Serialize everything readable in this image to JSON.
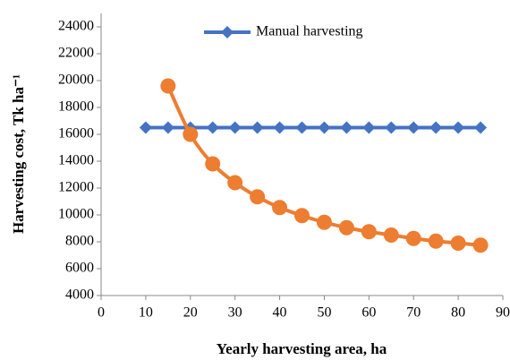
{
  "chart_data": {
    "type": "line",
    "x_label": "Yearly harvesting area, ha",
    "y_label": "Harvesting  cost, Tk ha⁻¹",
    "xlim": [
      0,
      90
    ],
    "xticks": [
      0,
      10,
      20,
      30,
      40,
      50,
      60,
      70,
      80,
      90
    ],
    "ylim": [
      4000,
      25000
    ],
    "yticks": [
      4000,
      6000,
      8000,
      10000,
      12000,
      14000,
      16000,
      18000,
      20000,
      22000,
      24000
    ],
    "series": [
      {
        "name": "Manual harvesting",
        "color": "#4472c4",
        "marker": "diamond",
        "x": [
          10,
          15,
          20,
          25,
          30,
          35,
          40,
          45,
          50,
          55,
          60,
          65,
          70,
          75,
          80,
          85
        ],
        "values": [
          16500,
          16500,
          16500,
          16500,
          16500,
          16500,
          16500,
          16500,
          16500,
          16500,
          16500,
          16500,
          16500,
          16500,
          16500,
          16500
        ]
      },
      {
        "color": "#ed7d31",
        "marker": "circle",
        "smooth": true,
        "x": [
          15,
          20,
          25,
          30,
          35,
          40,
          45,
          50,
          55,
          60,
          65,
          70,
          75,
          80,
          85
        ],
        "values": [
          19600,
          16000,
          13800,
          12400,
          11350,
          10550,
          9950,
          9450,
          9050,
          8750,
          8500,
          8250,
          8050,
          7900,
          7750
        ]
      }
    ]
  }
}
